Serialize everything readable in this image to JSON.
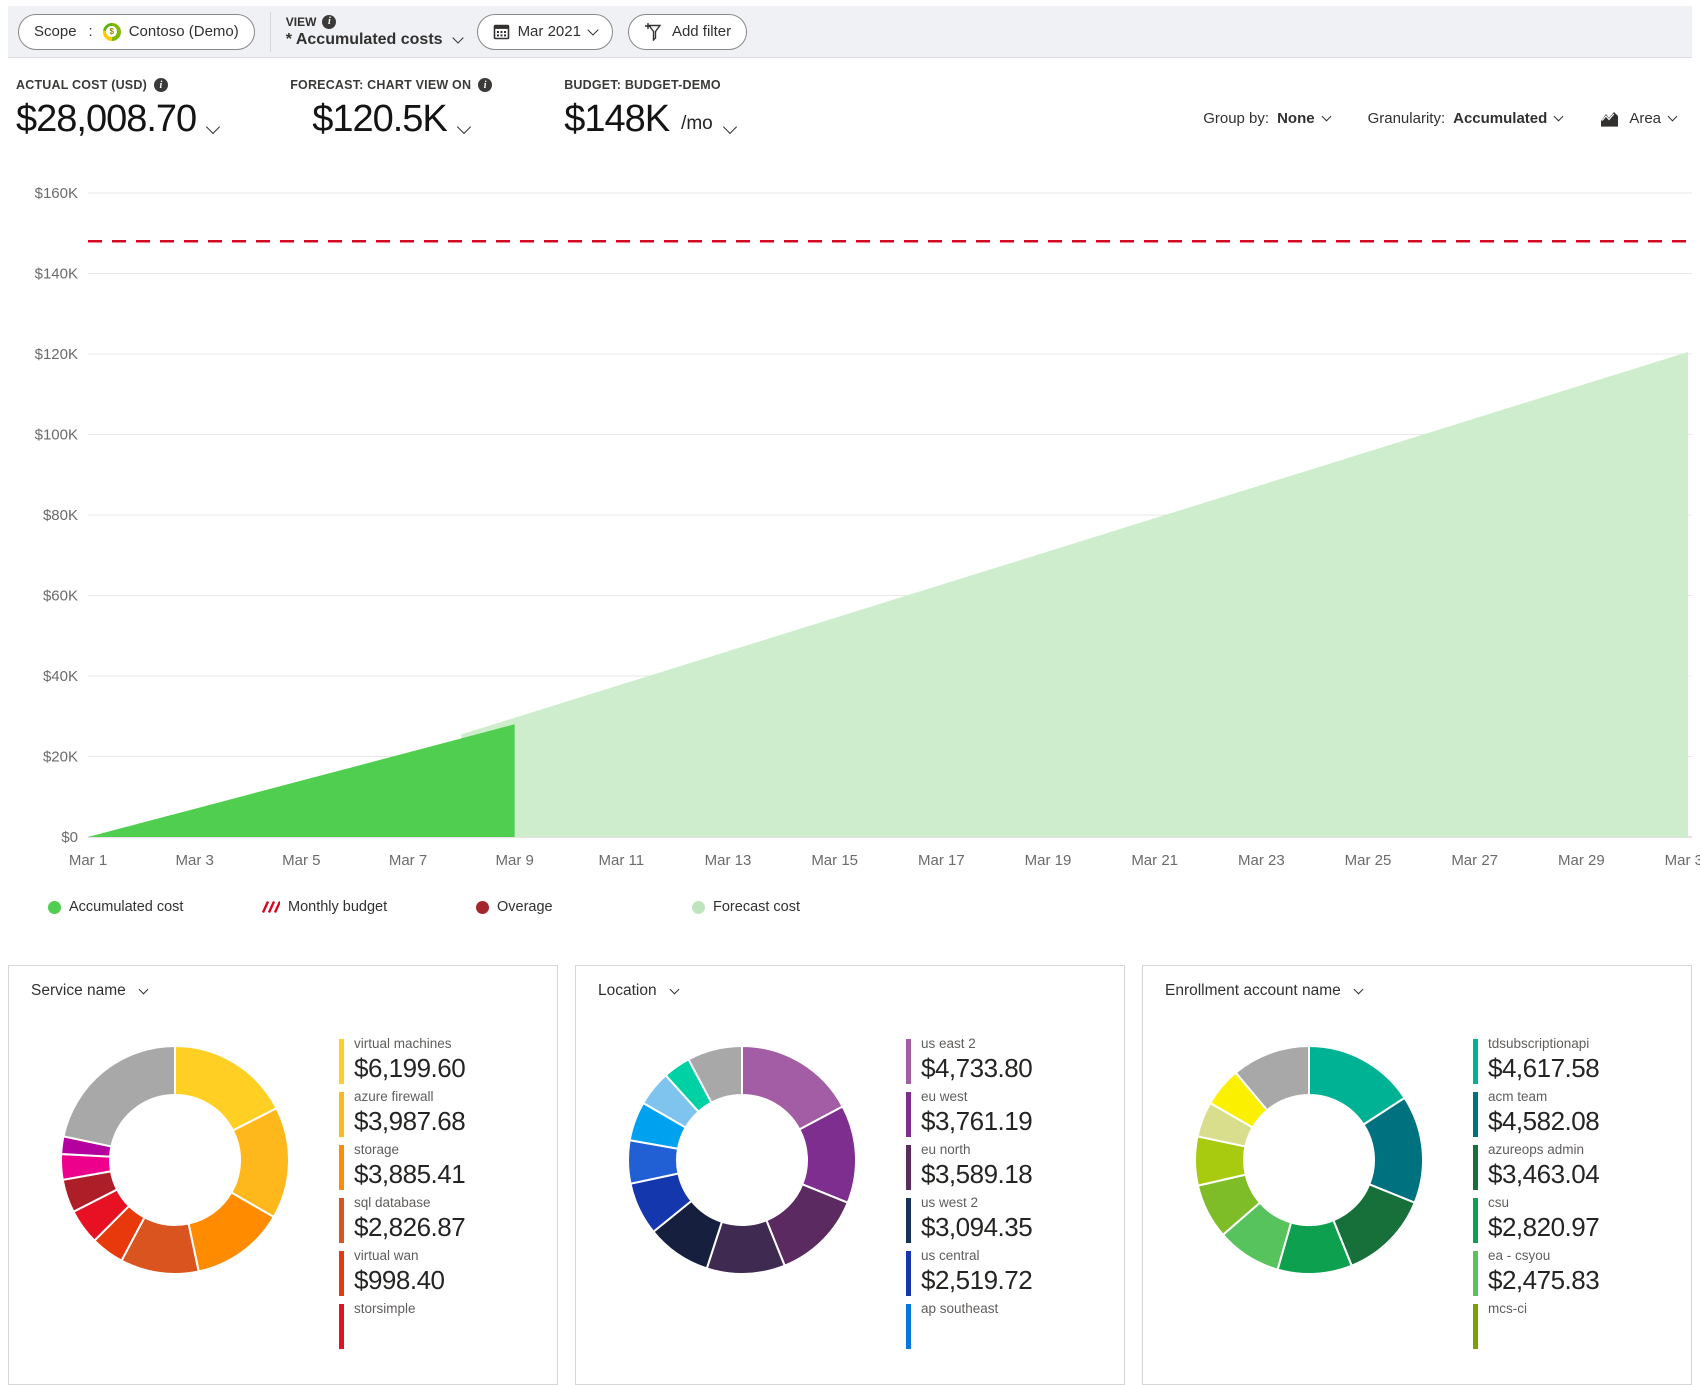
{
  "topbar": {
    "scope_label": "Scope",
    "scope_colon": ":",
    "scope_value": "Contoso (Demo)",
    "view_label": "VIEW",
    "view_value": "* Accumulated costs",
    "date_range": "Mar 2021",
    "add_filter": "Add filter"
  },
  "kpis": [
    {
      "label": "ACTUAL COST (USD)",
      "value": "$28,008.70",
      "suffix": ""
    },
    {
      "label": "FORECAST: CHART VIEW ON",
      "value": "$120.5K",
      "suffix": ""
    },
    {
      "label": "BUDGET: BUDGET-DEMO",
      "value": "$148K",
      "suffix": "/mo"
    }
  ],
  "controls": {
    "group_by_label": "Group by:",
    "group_by_value": "None",
    "granularity_label": "Granularity:",
    "granularity_value": "Accumulated",
    "chart_type_label": "Area"
  },
  "chart_data": [
    {
      "type": "area",
      "title": "Accumulated costs",
      "ylim": [
        0,
        160000
      ],
      "y_tick_labels": [
        "$0",
        "$20K",
        "$40K",
        "$60K",
        "$80K",
        "$100K",
        "$120K",
        "$140K",
        "$160K"
      ],
      "x_domain_days": [
        1,
        31
      ],
      "x_tick_days": [
        1,
        3,
        5,
        7,
        9,
        11,
        13,
        15,
        17,
        19,
        21,
        23,
        25,
        27,
        29,
        31
      ],
      "x_tick_labels": [
        "Mar 1",
        "Mar 3",
        "Mar 5",
        "Mar 7",
        "Mar 9",
        "Mar 11",
        "Mar 13",
        "Mar 15",
        "Mar 17",
        "Mar 19",
        "Mar 21",
        "Mar 23",
        "Mar 25",
        "Mar 27",
        "Mar 29",
        "Mar 31"
      ],
      "grid": true,
      "legend_position": "bottom",
      "budget_line": {
        "label": "Monthly budget",
        "value": 148000,
        "color": "#D40A20",
        "style": "dashed"
      },
      "series": [
        {
          "name": "Forecast cost",
          "color": "#CDEDCD",
          "days": [
            8,
            9,
            10,
            11,
            12,
            13,
            14,
            15,
            16,
            17,
            18,
            19,
            20,
            21,
            22,
            23,
            24,
            25,
            26,
            27,
            28,
            29,
            30,
            31
          ],
          "values": [
            25500,
            29630,
            33761,
            37891,
            42022,
            46152,
            50283,
            54413,
            58543,
            62674,
            66804,
            70935,
            75065,
            79196,
            83326,
            87457,
            91587,
            95717,
            99848,
            103978,
            108109,
            112239,
            116370,
            120500
          ]
        },
        {
          "name": "Accumulated cost",
          "color": "#4FCE4F",
          "days": [
            1,
            2,
            3,
            4,
            5,
            6,
            7,
            8,
            9
          ],
          "values": [
            0,
            3500,
            7000,
            10500,
            14000,
            17500,
            21000,
            24500,
            28008.7
          ]
        }
      ],
      "legend": [
        {
          "label": "Accumulated cost",
          "color": "#4FCE4F",
          "swatch": "circle"
        },
        {
          "label": "Monthly budget",
          "color": "#D40A20",
          "swatch": "hatch"
        },
        {
          "label": "Overage",
          "color": "#A4262C",
          "swatch": "circle"
        },
        {
          "label": "Forecast cost",
          "color": "#BFE5BF",
          "swatch": "circle"
        }
      ]
    },
    {
      "type": "pie",
      "title": "Service name",
      "segments": [
        {
          "color": "#FFD023",
          "deg": 63
        },
        {
          "color": "#FFB81C",
          "deg": 57
        },
        {
          "color": "#FF8C00",
          "deg": 48
        },
        {
          "color": "#D9541E",
          "deg": 40
        },
        {
          "color": "#E8390D",
          "deg": 17
        },
        {
          "color": "#E81123",
          "deg": 18
        },
        {
          "color": "#AE1E28",
          "deg": 17
        },
        {
          "color": "#EC008C",
          "deg": 13
        },
        {
          "color": "#B4009E",
          "deg": 9
        },
        {
          "color": "#A8A8A8",
          "deg": 78
        }
      ],
      "legend": [
        {
          "label": "virtual machines",
          "value": 6199.6,
          "display": "$6,199.60",
          "color": "#FFD023"
        },
        {
          "label": "azure firewall",
          "value": 3987.68,
          "display": "$3,987.68",
          "color": "#FFB81C"
        },
        {
          "label": "storage",
          "value": 3885.41,
          "display": "$3,885.41",
          "color": "#FF8C00"
        },
        {
          "label": "sql database",
          "value": 2826.87,
          "display": "$2,826.87",
          "color": "#D9541E"
        },
        {
          "label": "virtual wan",
          "value": 998.4,
          "display": "$998.40",
          "color": "#E8390D"
        },
        {
          "label": "storsimple",
          "display": "",
          "color": "#E81123",
          "partial": true
        }
      ]
    },
    {
      "type": "pie",
      "title": "Location",
      "segments": [
        {
          "color": "#A35DA5",
          "deg": 62
        },
        {
          "color": "#7D2E8E",
          "deg": 50
        },
        {
          "color": "#5A2A60",
          "deg": 46
        },
        {
          "color": "#3F2B52",
          "deg": 40
        },
        {
          "color": "#16203E",
          "deg": 33
        },
        {
          "color": "#1437AD",
          "deg": 27
        },
        {
          "color": "#2160D4",
          "deg": 22
        },
        {
          "color": "#00A2F0",
          "deg": 20
        },
        {
          "color": "#7FC4EE",
          "deg": 18
        },
        {
          "color": "#00D1A4",
          "deg": 14
        },
        {
          "color": "#A8A8A8",
          "deg": 28
        }
      ],
      "legend": [
        {
          "label": "us east 2",
          "value": 4733.8,
          "display": "$4,733.80",
          "color": "#A35DA5"
        },
        {
          "label": "eu west",
          "value": 3761.19,
          "display": "$3,761.19",
          "color": "#7D2E8E"
        },
        {
          "label": "eu north",
          "value": 3589.18,
          "display": "$3,589.18",
          "color": "#5A2A60"
        },
        {
          "label": "us west 2",
          "value": 3094.35,
          "display": "$3,094.35",
          "color": "#16325C"
        },
        {
          "label": "us central",
          "value": 2519.72,
          "display": "$2,519.72",
          "color": "#1437AD"
        },
        {
          "label": "ap southeast",
          "display": "",
          "color": "#0078D7",
          "partial": true
        }
      ]
    },
    {
      "type": "pie",
      "title": "Enrollment account name",
      "segments": [
        {
          "color": "#00B294",
          "deg": 57
        },
        {
          "color": "#00717F",
          "deg": 55
        },
        {
          "color": "#176F3A",
          "deg": 46
        },
        {
          "color": "#0DA04F",
          "deg": 38
        },
        {
          "color": "#57C35C",
          "deg": 33
        },
        {
          "color": "#7FBD28",
          "deg": 28
        },
        {
          "color": "#A8CB0F",
          "deg": 25
        },
        {
          "color": "#D9DE8D",
          "deg": 18
        },
        {
          "color": "#FBF000",
          "deg": 20
        },
        {
          "color": "#A8A8A8",
          "deg": 40
        }
      ],
      "legend": [
        {
          "label": "tdsubscriptionapi",
          "value": 4617.58,
          "display": "$4,617.58",
          "color": "#00B294"
        },
        {
          "label": "acm team",
          "value": 4582.08,
          "display": "$4,582.08",
          "color": "#00717F"
        },
        {
          "label": "azureops admin",
          "value": 3463.04,
          "display": "$3,463.04",
          "color": "#176F3A"
        },
        {
          "label": "csu",
          "value": 2820.97,
          "display": "$2,820.97",
          "color": "#0DA04F"
        },
        {
          "label": "ea - csyou",
          "value": 2475.83,
          "display": "$2,475.83",
          "color": "#57C35C"
        },
        {
          "label": "mcs-ci",
          "display": "",
          "color": "#7BA100",
          "partial": true
        }
      ]
    }
  ]
}
